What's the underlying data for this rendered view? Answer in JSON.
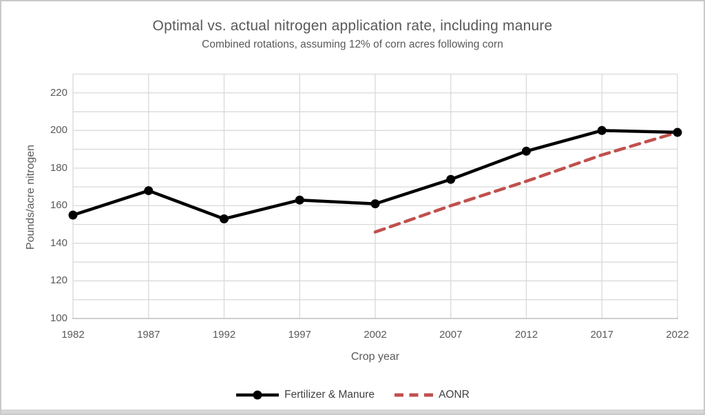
{
  "chart_data": {
    "type": "line",
    "title": "Optimal vs. actual nitrogen application rate, including manure",
    "subtitle": "Combined rotations, assuming 12% of corn acres following corn",
    "xlabel": "Crop year",
    "ylabel": "Pounds/acre nitrogen",
    "categories": [
      1982,
      1987,
      1992,
      1997,
      2002,
      2007,
      2012,
      2017,
      2022
    ],
    "series": [
      {
        "name": "Fertilizer & Manure",
        "color": "#000000",
        "line_style": "solid",
        "marker": true,
        "x": [
          1982,
          1987,
          1992,
          1997,
          2002,
          2007,
          2012,
          2017,
          2022
        ],
        "values": [
          155,
          168,
          153,
          163,
          161,
          174,
          189,
          200,
          199
        ]
      },
      {
        "name": "AONR",
        "color": "#c0504d",
        "line_style": "dashed",
        "marker": false,
        "x": [
          2002,
          2007,
          2012,
          2017,
          2022
        ],
        "values": [
          146,
          160,
          173,
          187,
          199
        ]
      }
    ],
    "ylim": [
      100,
      230
    ],
    "y_major_ticks": [
      100,
      120,
      140,
      160,
      180,
      200,
      220
    ],
    "y_minor_grid_step": 10,
    "grid": true,
    "legend_position": "bottom"
  },
  "style": {
    "grid_color": "#d9d9d9",
    "axis_line_color": "#bfbfbf",
    "text_color": "#595959",
    "legend_text_color": "#404040",
    "background": "#ffffff"
  }
}
